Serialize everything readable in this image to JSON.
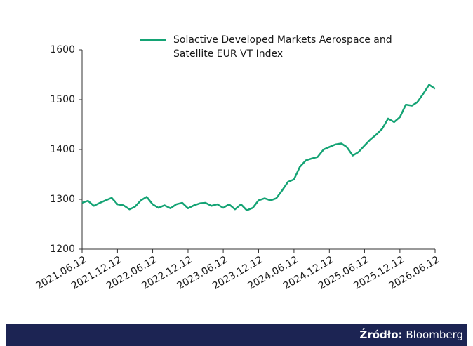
{
  "chart_data": {
    "type": "line",
    "series": [
      {
        "name": "Solactive Developed Markets Aerospace and Satellite EUR VT Index",
        "color": "#14a374",
        "values": [
          1293,
          1297,
          1287,
          1293,
          1298,
          1303,
          1290,
          1288,
          1280,
          1285,
          1298,
          1305,
          1290,
          1283,
          1288,
          1282,
          1290,
          1293,
          1282,
          1288,
          1292,
          1293,
          1287,
          1290,
          1283,
          1290,
          1280,
          1290,
          1278,
          1283,
          1298,
          1302,
          1298,
          1302,
          1318,
          1335,
          1340,
          1365,
          1378,
          1382,
          1385,
          1400,
          1405,
          1410,
          1412,
          1405,
          1388,
          1395,
          1408,
          1420,
          1430,
          1442,
          1462,
          1455,
          1465,
          1490,
          1488,
          1495,
          1512,
          1530,
          1522
        ]
      }
    ],
    "x": [
      "2021.06.12",
      "2021.07.12",
      "2021.08.12",
      "2021.09.12",
      "2021.10.12",
      "2021.11.12",
      "2021.12.12",
      "2022.01.12",
      "2022.02.12",
      "2022.03.12",
      "2022.04.12",
      "2022.05.12",
      "2022.06.12",
      "2022.07.12",
      "2022.08.12",
      "2022.09.12",
      "2022.10.12",
      "2022.11.12",
      "2022.12.12",
      "2023.01.12",
      "2023.02.12",
      "2023.03.12",
      "2023.04.12",
      "2023.05.12",
      "2023.06.12",
      "2023.07.12",
      "2023.08.12",
      "2023.09.12",
      "2023.10.12",
      "2023.11.12",
      "2023.12.12",
      "2024.01.12",
      "2024.02.12",
      "2024.03.12",
      "2024.04.12",
      "2024.05.12",
      "2024.06.12",
      "2024.07.12",
      "2024.08.12",
      "2024.09.12",
      "2024.10.12",
      "2024.11.12",
      "2024.12.12",
      "2025.01.12",
      "2025.02.12",
      "2025.03.12",
      "2025.04.12",
      "2025.05.12",
      "2025.06.12",
      "2025.07.12",
      "2025.08.12",
      "2025.09.12",
      "2025.10.12",
      "2025.11.12",
      "2025.12.12",
      "2026.01.12",
      "2026.02.12",
      "2026.03.12",
      "2026.04.12",
      "2026.05.12",
      "2026.06.12"
    ],
    "xlim": [
      "2021.06.12",
      "2026.06.12"
    ],
    "xticks": [
      "2021.06.12",
      "2021.12.12",
      "2022.06.12",
      "2022.12.12",
      "2023.06.12",
      "2023.12.12",
      "2024.06.12",
      "2024.12.12",
      "2025.06.12",
      "2025.12.12",
      "2026.06.12"
    ],
    "ylim": [
      1200,
      1600
    ],
    "yticks": [
      1200,
      1300,
      1400,
      1500,
      1600
    ],
    "legend": "top",
    "source_label": "Źródło:",
    "source": "Bloomberg"
  }
}
